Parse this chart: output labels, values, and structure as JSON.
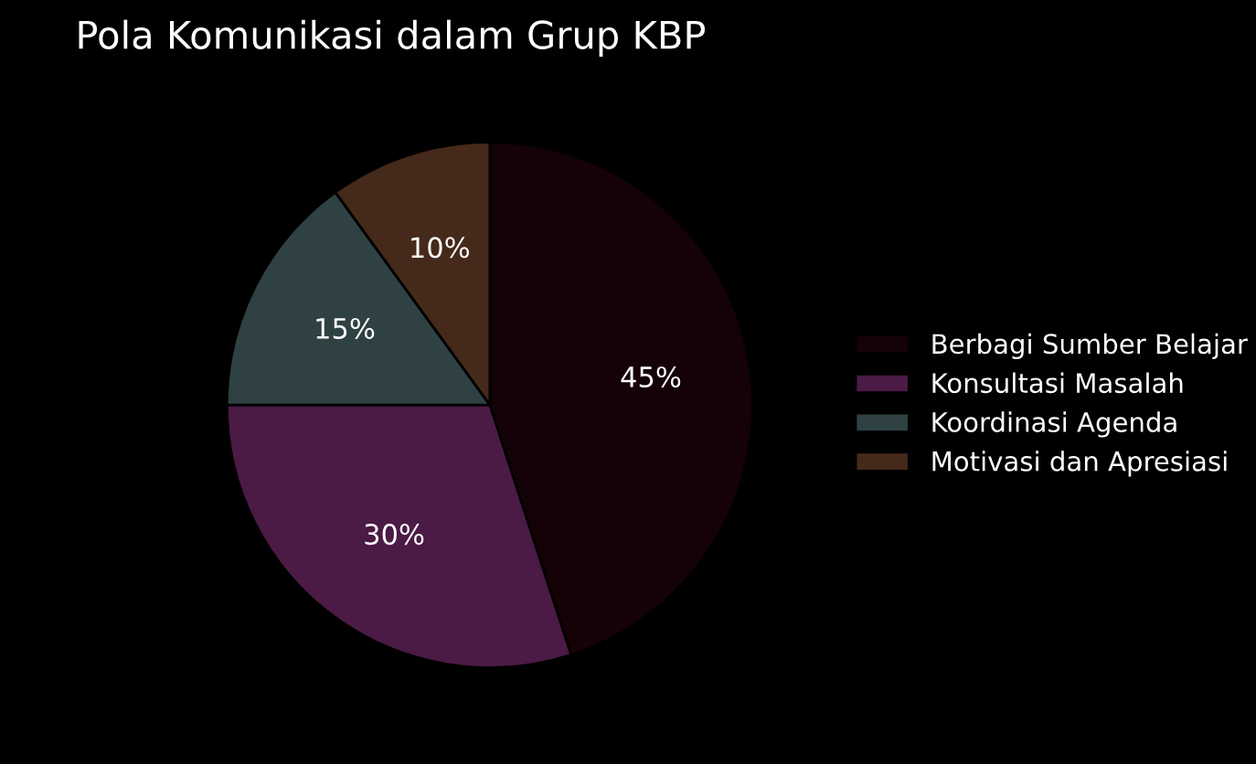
{
  "chart_data": {
    "type": "pie",
    "title": "Pola Komunikasi dalam Grup KBP",
    "categories": [
      "Berbagi Sumber Belajar",
      "Konsultasi Masalah",
      "Koordinasi Agenda",
      "Motivasi dan Apresiasi"
    ],
    "values": [
      45,
      30,
      15,
      10
    ],
    "colors": [
      "#140206",
      "#4b1a45",
      "#2f4142",
      "#45291a"
    ],
    "value_labels": [
      "45%",
      "30%",
      "15%",
      "10%"
    ],
    "legend": "right"
  }
}
